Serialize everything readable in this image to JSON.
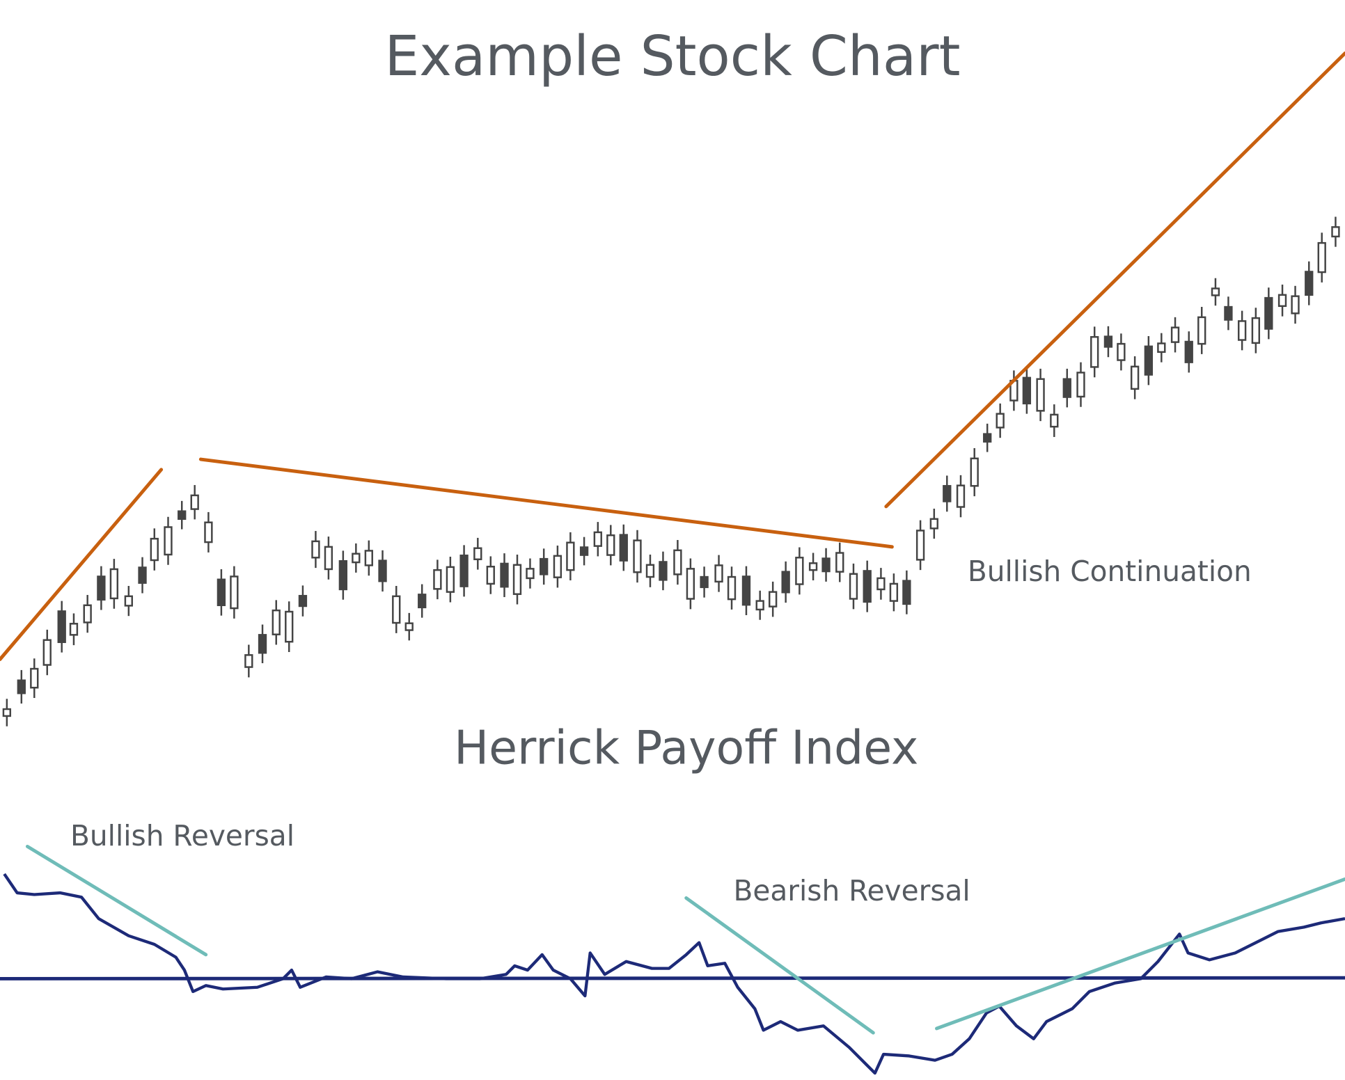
{
  "title": "Example Stock Chart",
  "annotations": {
    "bullish_continuation": "Bullish Continuation",
    "bullish_reversal": "Bullish Reversal",
    "bearish_reversal": "Bearish Reversal"
  },
  "subtitle": "Herrick Payoff Index"
}
